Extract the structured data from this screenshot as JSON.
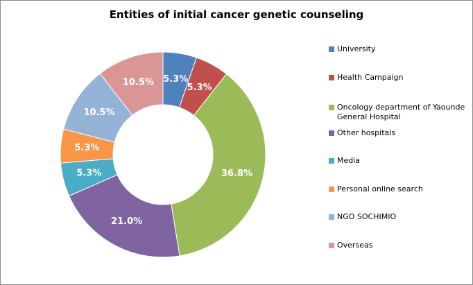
{
  "chart_data": {
    "type": "pie",
    "variant": "donut",
    "title": "Entities of initial cancer genetic counseling",
    "legend_position": "right",
    "slices": [
      {
        "label": "University",
        "value": 5.3,
        "display": "5.3%",
        "color": "#4f81bd"
      },
      {
        "label": "Health Campaign",
        "value": 5.3,
        "display": "5.3%",
        "color": "#c0504d"
      },
      {
        "label": "Oncology department of Yaounde General Hospital",
        "value": 36.8,
        "display": "36.8%",
        "color": "#9bbb59"
      },
      {
        "label": "Other hospitals",
        "value": 21.0,
        "display": "21.0%",
        "color": "#8064a2"
      },
      {
        "label": "Media",
        "value": 5.3,
        "display": "5.3%",
        "color": "#4bacc6"
      },
      {
        "label": "Personal online search",
        "value": 5.3,
        "display": "5.3%",
        "color": "#f79646"
      },
      {
        "label": "NGO SOCHIMIO",
        "value": 10.5,
        "display": "10.5%",
        "color": "#95b3d7"
      },
      {
        "label": "Overseas",
        "value": 10.5,
        "display": "10.5%",
        "color": "#d99694"
      }
    ]
  }
}
